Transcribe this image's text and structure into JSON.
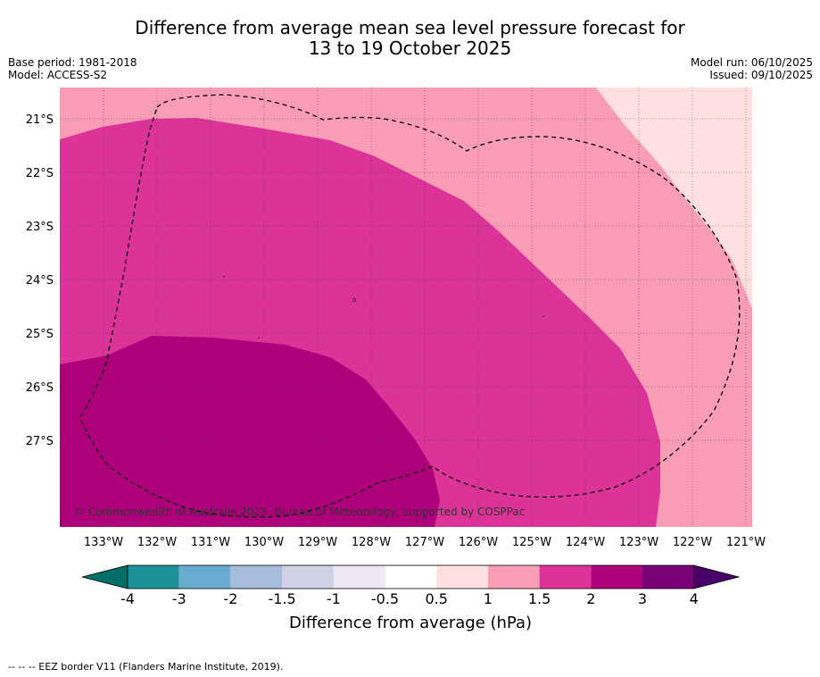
{
  "title": {
    "line1": "Difference from average mean sea level pressure forecast for",
    "line2": "13 to 19 October 2025"
  },
  "meta": {
    "base_period": "Base period: 1981-2018",
    "model": "Model: ACCESS-S2",
    "model_run": "Model run: 06/10/2025",
    "issued": "Issued: 09/10/2025"
  },
  "map": {
    "lat_labels": [
      "21°S",
      "22°S",
      "23°S",
      "24°S",
      "25°S",
      "26°S",
      "27°S"
    ],
    "lon_labels": [
      "133°W",
      "132°W",
      "131°W",
      "130°W",
      "129°W",
      "128°W",
      "127°W",
      "126°W",
      "125°W",
      "124°W",
      "123°W",
      "122°W",
      "121°W"
    ],
    "copyright": "© Commonwealth of Australia 2025, Bureau of Meteorology, supported by COSPPac",
    "fill_colors": {
      "level_0_5_1": "#ffdfe0",
      "level_1_1_5": "#f99cb6",
      "level_1_5_2": "#dc3399",
      "level_2_3": "#af007c"
    }
  },
  "colorbar": {
    "tick_labels": [
      "-4",
      "-3",
      "-2",
      "-1.5",
      "-1",
      "-0.5",
      "0.5",
      "1",
      "1.5",
      "2",
      "3",
      "4"
    ],
    "colors": [
      "#1b9299",
      "#68abd1",
      "#a7bcdb",
      "#d0d1e6",
      "#ede7f1",
      "#ffffff",
      "#ffdfe0",
      "#f99cb6",
      "#dc3399",
      "#af007c",
      "#7a0177"
    ],
    "under_color": "#016f68",
    "over_color": "#49006a",
    "title": "Difference from average (hPa)"
  },
  "footer": {
    "legend_text": "--  --  -- EEZ border V11 (Flanders Marine Institute, 2019)."
  }
}
